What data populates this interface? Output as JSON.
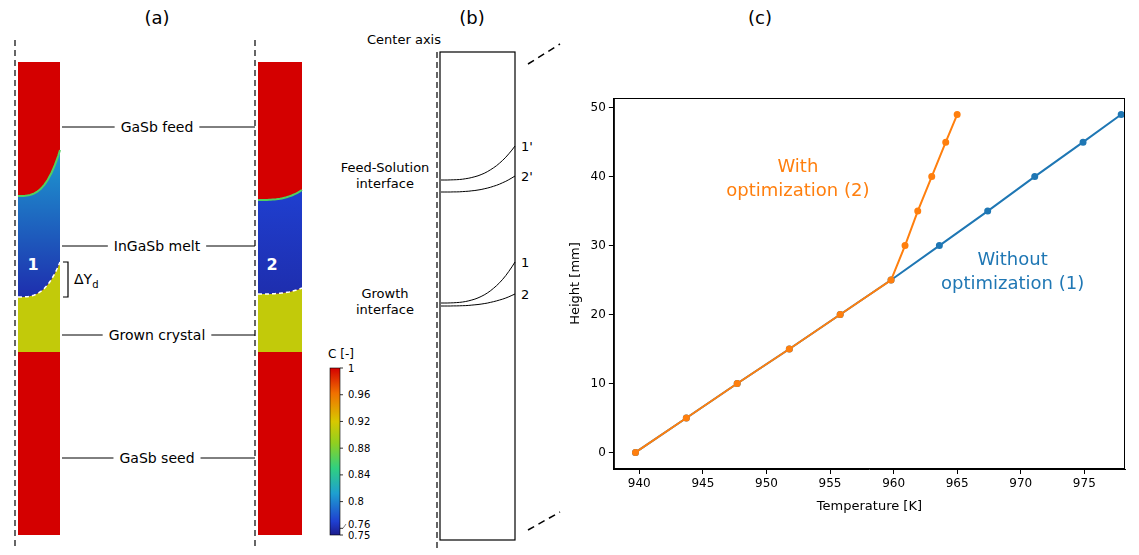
{
  "panel_a": {
    "letter": "(a)",
    "region_labels": [
      "GaSb feed",
      "InGaSb melt",
      "Grown crystal",
      "GaSb seed"
    ],
    "columns": [
      {
        "label": "1",
        "c_feed": 1,
        "c_melt_top": 0.81,
        "c_melt_bottom": 0.76,
        "c_crystal": 0.91,
        "c_seed": 1
      },
      {
        "label": "2",
        "c_feed": 1,
        "c_melt_top": 0.77,
        "c_melt_bottom": 0.76,
        "c_crystal": 0.91,
        "c_seed": 1
      }
    ],
    "annotation": {
      "text": "ΔY",
      "subscript": "d"
    },
    "colorbar": {
      "label": "C [-]",
      "range": [
        0.75,
        1
      ],
      "ticks": [
        1,
        0.96,
        0.92,
        0.88,
        0.84,
        0.8,
        0.76,
        0.75
      ]
    }
  },
  "panel_b": {
    "letter": "(b)",
    "labels": [
      "Center axis",
      "Feed-Solution interface",
      "Growth interface"
    ],
    "curve_labels": [
      "1'",
      "2'",
      "1",
      "2"
    ]
  },
  "chart_data": {
    "type": "line",
    "title": "(c)",
    "xlabel": "Temperature [K]",
    "ylabel": "Height [mm]",
    "series": [
      {
        "name": "Without optimization (1)",
        "color": "#1f77b4",
        "marker": "circle",
        "x": [
          939.7,
          943.7,
          947.7,
          951.8,
          955.8,
          959.8,
          963.6,
          967.4,
          971.1,
          974.9,
          977.9
        ],
        "values": [
          0,
          5,
          10,
          15,
          20,
          25,
          30,
          35,
          40,
          45,
          49
        ]
      },
      {
        "name": "With optimization (2)",
        "color": "#ff7f0e",
        "marker": "circle",
        "x": [
          939.7,
          943.7,
          947.7,
          951.8,
          955.8,
          959.8,
          960.9,
          961.9,
          963.0,
          964.1,
          965.0
        ],
        "values": [
          0,
          5,
          10,
          15,
          20,
          25,
          30,
          35,
          40,
          45,
          49
        ]
      }
    ],
    "xlim": [
      938,
      978.2
    ],
    "xticks": [
      940,
      945,
      950,
      955,
      960,
      965,
      970,
      975
    ],
    "ylim": [
      -2.4,
      51.4
    ],
    "yticks": [
      0,
      10,
      20,
      30,
      40,
      50
    ],
    "grid": false,
    "legend": "none"
  }
}
